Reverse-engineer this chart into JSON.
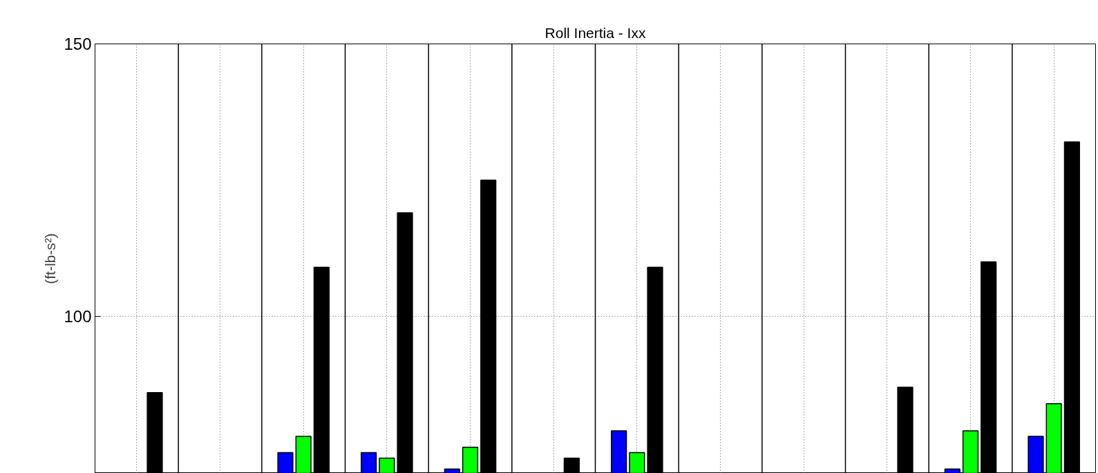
{
  "chart_data": {
    "type": "bar",
    "title": "Roll Inertia - Ixx",
    "ylabel": "(ft-lb-s²)",
    "categories": [
      null,
      null,
      null,
      null,
      null,
      null,
      null,
      null,
      null,
      null,
      null,
      null
    ],
    "series": [
      {
        "color": "#0000ff",
        "values": [
          null,
          null,
          75,
          75,
          72,
          null,
          79,
          null,
          null,
          null,
          72,
          78
        ]
      },
      {
        "color": "#00ff00",
        "values": [
          null,
          null,
          78,
          74,
          76,
          null,
          75,
          null,
          null,
          null,
          79,
          84
        ]
      },
      {
        "color": "#000000",
        "values": [
          86,
          null,
          109,
          119,
          125,
          74,
          109,
          null,
          null,
          87,
          110,
          132
        ]
      }
    ],
    "ylim": [
      71.2,
      150
    ],
    "yticks": [
      100,
      150
    ],
    "grid": true,
    "tick_labels": "y"
  }
}
